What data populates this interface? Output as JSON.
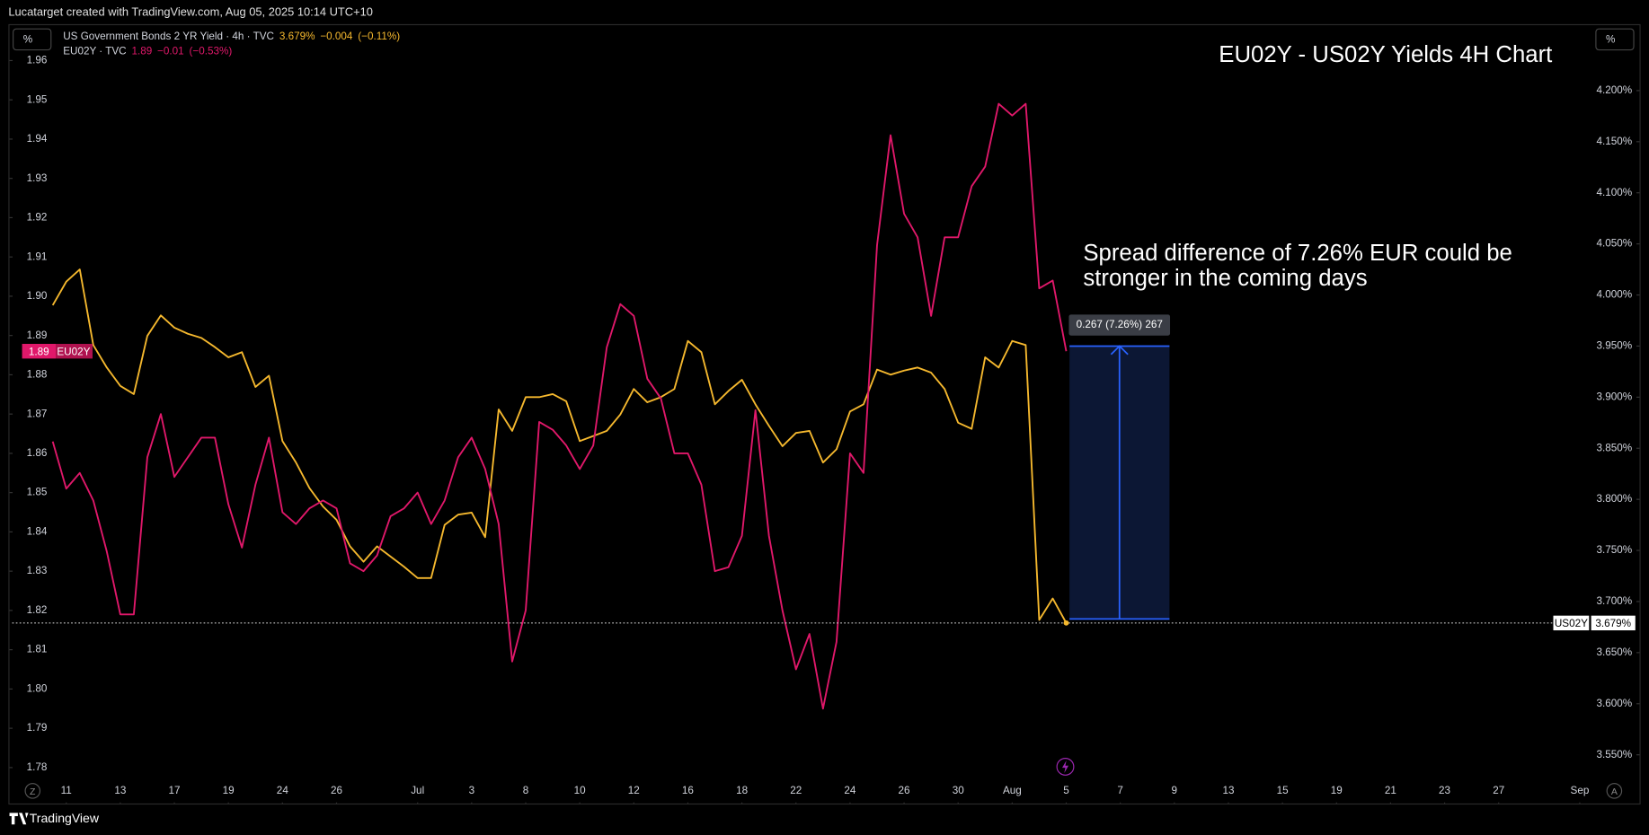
{
  "page": {
    "header": "Lucatarget created with TradingView.com, Aug 05, 2025 10:14 UTC+10",
    "footer": "TradingView",
    "percent_button": "%",
    "scale_buttons": [
      "Z",
      "A"
    ]
  },
  "chart_data": {
    "type": "line",
    "title": "EU02Y - US02Y Yields 4H Chart",
    "annotation_lines": [
      "Spread difference of 7.26% EUR could be",
      "stronger in the coming days"
    ],
    "measure": {
      "label": "0.267 (7.26%) 267",
      "x_start": 37.12,
      "x_end": 40.82,
      "y_start": 3.683,
      "y_end": 3.95,
      "axis": "y2"
    },
    "x": [
      -0.5,
      0,
      0.5,
      1,
      1.5,
      2,
      2.5,
      3,
      3.5,
      4,
      4.5,
      5,
      5.5,
      6,
      6.5,
      7,
      7.5,
      8,
      8.5,
      9,
      9.5,
      10,
      10.5,
      11,
      11.5,
      12,
      12.5,
      13,
      13.5,
      14,
      14.5,
      15,
      15.5,
      16,
      16.5,
      17,
      17.5,
      18,
      18.5,
      19,
      19.5,
      20,
      20.5,
      21,
      21.5,
      22,
      22.5,
      23,
      23.5,
      24,
      24.5,
      25,
      25.5,
      26,
      26.5,
      27,
      27.5,
      28,
      28.5,
      29,
      29.5,
      30,
      30.5,
      31,
      31.5,
      32,
      32.5,
      33,
      33.5,
      34,
      34.5,
      35,
      35.5,
      36,
      36.5,
      37
    ],
    "series": [
      {
        "name": "US Government Bonds 2 YR Yield · 4h · TVC",
        "badge": "US02Y",
        "last": "3.679%",
        "change": "−0.004",
        "change_pct": "(−0.11%)",
        "color": "#f5b82e",
        "axis": "y2",
        "values": [
          3.99,
          4.013,
          4.025,
          3.951,
          3.929,
          3.911,
          3.903,
          3.96,
          3.98,
          3.968,
          3.962,
          3.958,
          3.949,
          3.939,
          3.944,
          3.91,
          3.921,
          3.857,
          3.836,
          3.811,
          3.793,
          3.78,
          3.754,
          3.739,
          3.754,
          3.744,
          3.734,
          3.723,
          3.723,
          3.775,
          3.785,
          3.787,
          3.763,
          3.888,
          3.867,
          3.9,
          3.9,
          3.903,
          3.896,
          3.857,
          3.862,
          3.867,
          3.883,
          3.908,
          3.895,
          3.9,
          3.908,
          3.955,
          3.944,
          3.893,
          3.906,
          3.917,
          3.893,
          3.872,
          3.852,
          3.865,
          3.867,
          3.836,
          3.849,
          3.886,
          3.893,
          3.927,
          3.922,
          3.926,
          3.929,
          3.924,
          3.908,
          3.875,
          3.869,
          3.939,
          3.929,
          3.955,
          3.951,
          3.682,
          3.703,
          3.679
        ]
      },
      {
        "name": "EU02Y · TVC",
        "badge": "EU02Y",
        "last": "1.89",
        "change": "−0.01",
        "change_pct": "(−0.53%)",
        "color": "#e0186a",
        "axis": "y",
        "values": [
          1.863,
          1.851,
          1.855,
          1.848,
          1.835,
          1.819,
          1.819,
          1.859,
          1.87,
          1.854,
          1.859,
          1.864,
          1.864,
          1.847,
          1.836,
          1.852,
          1.864,
          1.845,
          1.842,
          1.846,
          1.848,
          1.846,
          1.832,
          1.83,
          1.834,
          1.844,
          1.846,
          1.85,
          1.842,
          1.848,
          1.859,
          1.864,
          1.856,
          1.842,
          1.807,
          1.82,
          1.868,
          1.866,
          1.862,
          1.856,
          1.862,
          1.887,
          1.898,
          1.895,
          1.879,
          1.874,
          1.86,
          1.86,
          1.852,
          1.83,
          1.831,
          1.839,
          1.871,
          1.839,
          1.82,
          1.805,
          1.814,
          1.795,
          1.812,
          1.86,
          1.855,
          1.913,
          1.941,
          1.921,
          1.915,
          1.895,
          1.915,
          1.915,
          1.928,
          1.933,
          1.949,
          1.946,
          1.949,
          1.902,
          1.904,
          1.886
        ]
      }
    ],
    "xlim": [
      -2,
      56.5
    ],
    "xticks": [
      {
        "value": 0,
        "label": "11"
      },
      {
        "value": 2,
        "label": "13"
      },
      {
        "value": 4,
        "label": "17"
      },
      {
        "value": 6,
        "label": "19"
      },
      {
        "value": 8,
        "label": "24"
      },
      {
        "value": 10,
        "label": "26"
      },
      {
        "value": 13,
        "label": "Jul"
      },
      {
        "value": 15,
        "label": "3"
      },
      {
        "value": 17,
        "label": "8"
      },
      {
        "value": 19,
        "label": "10"
      },
      {
        "value": 21,
        "label": "12"
      },
      {
        "value": 23,
        "label": "16"
      },
      {
        "value": 25,
        "label": "18"
      },
      {
        "value": 27,
        "label": "22"
      },
      {
        "value": 29,
        "label": "24"
      },
      {
        "value": 31,
        "label": "26"
      },
      {
        "value": 33,
        "label": "30"
      },
      {
        "value": 35,
        "label": "Aug"
      },
      {
        "value": 37,
        "label": "5"
      },
      {
        "value": 39,
        "label": "7"
      },
      {
        "value": 41,
        "label": "9"
      },
      {
        "value": 43,
        "label": "13"
      },
      {
        "value": 45,
        "label": "15"
      },
      {
        "value": 47,
        "label": "19"
      },
      {
        "value": 49,
        "label": "21"
      },
      {
        "value": 51,
        "label": "23"
      },
      {
        "value": 53,
        "label": "27"
      },
      {
        "value": 56,
        "label": "Sep"
      }
    ],
    "ylim": [
      1.777,
      1.969
    ],
    "yticks": [
      1.96,
      1.95,
      1.94,
      1.93,
      1.92,
      1.91,
      {
        "value": 1.9,
        "label": "1.90"
      },
      1.89,
      1.88,
      1.87,
      1.86,
      1.85,
      1.84,
      1.83,
      1.82,
      1.81,
      {
        "value": 1.8,
        "label": "1.80"
      },
      1.79,
      1.78
    ],
    "y2lim": [
      3.526,
      4.264
    ],
    "y2ticks": [
      {
        "value": 4.2,
        "label": "4.200%"
      },
      {
        "value": 4.15,
        "label": "4.150%"
      },
      {
        "value": 4.1,
        "label": "4.100%"
      },
      {
        "value": 4.05,
        "label": "4.050%"
      },
      {
        "value": 4.0,
        "label": "4.000%"
      },
      {
        "value": 3.95,
        "label": "3.950%"
      },
      {
        "value": 3.9,
        "label": "3.900%"
      },
      {
        "value": 3.85,
        "label": "3.850%"
      },
      {
        "value": 3.8,
        "label": "3.800%"
      },
      {
        "value": 3.75,
        "label": "3.750%"
      },
      {
        "value": 3.7,
        "label": "3.700%"
      },
      {
        "value": 3.65,
        "label": "3.650%"
      },
      {
        "value": 3.6,
        "label": "3.600%"
      },
      {
        "value": 3.55,
        "label": "3.550%"
      }
    ],
    "grid": false
  }
}
